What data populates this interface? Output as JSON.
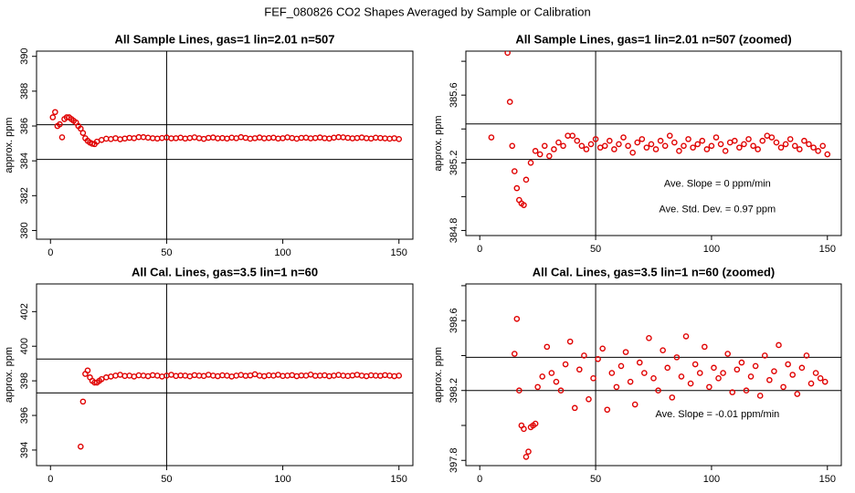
{
  "title": "FEF_080826  CO2 Shapes Averaged by Sample or Calibration",
  "chart_data": [
    {
      "type": "scatter",
      "title": "All Sample Lines, gas=1 lin=2.01 n=507",
      "ylabel": "approx. ppm",
      "color": "#e00000",
      "xlim": [
        -6,
        156
      ],
      "xticks": [
        0,
        50,
        100,
        150
      ],
      "ylim": [
        379.5,
        390.3
      ],
      "yticks": [
        380,
        382,
        384,
        386,
        388,
        390
      ],
      "hlines": [
        386.07,
        384.08
      ],
      "vline": 50,
      "x": [
        1,
        2,
        3,
        4,
        5,
        6,
        7,
        8,
        9,
        10,
        11,
        12,
        13,
        14,
        15,
        16,
        17,
        18,
        19,
        20,
        22,
        24,
        26,
        28,
        30,
        32,
        34,
        36,
        38,
        40,
        42,
        44,
        46,
        48,
        50,
        52,
        54,
        56,
        58,
        60,
        62,
        64,
        66,
        68,
        70,
        72,
        74,
        76,
        78,
        80,
        82,
        84,
        86,
        88,
        90,
        92,
        94,
        96,
        98,
        100,
        102,
        104,
        106,
        108,
        110,
        112,
        114,
        116,
        118,
        120,
        122,
        124,
        126,
        128,
        130,
        132,
        134,
        136,
        138,
        140,
        142,
        144,
        146,
        148,
        150
      ],
      "values": [
        386.5,
        386.8,
        386.0,
        386.1,
        385.35,
        386.4,
        386.5,
        386.5,
        386.4,
        386.3,
        386.2,
        386.0,
        385.85,
        385.6,
        385.3,
        385.15,
        385.05,
        384.98,
        384.96,
        385.1,
        385.2,
        385.27,
        385.25,
        385.3,
        385.24,
        385.28,
        385.32,
        385.3,
        385.36,
        385.36,
        385.33,
        385.3,
        385.28,
        385.31,
        385.34,
        385.29,
        385.3,
        385.33,
        385.28,
        385.31,
        385.35,
        385.3,
        385.26,
        385.32,
        385.34,
        385.29,
        385.31,
        385.28,
        385.33,
        385.3,
        385.36,
        385.32,
        385.27,
        385.3,
        385.34,
        385.29,
        385.31,
        385.33,
        385.28,
        385.3,
        385.35,
        385.31,
        385.27,
        385.32,
        385.33,
        385.29,
        385.31,
        385.34,
        385.3,
        385.28,
        385.33,
        385.36,
        385.35,
        385.32,
        385.29,
        385.31,
        385.34,
        385.3,
        385.28,
        385.33,
        385.31,
        385.29,
        385.27,
        385.3,
        385.25
      ]
    },
    {
      "type": "scatter",
      "title": "All Sample Lines, gas=1 lin=2.01 n=507 (zoomed)",
      "ylabel": "approx. ppm",
      "color": "#e00000",
      "xlim": [
        -6,
        156
      ],
      "xticks": [
        0,
        50,
        100,
        150
      ],
      "ylim": [
        384.77,
        385.86
      ],
      "yticks": [
        384.8,
        385.2,
        385.6
      ],
      "minor_yticks": [
        385.0,
        385.4,
        385.8
      ],
      "hlines": [
        385.43,
        385.22
      ],
      "vline": 50,
      "annotations": [
        "Ave. Slope =  0  ppm/min",
        "Ave. Std. Dev. =  0.97  ppm"
      ],
      "x": [
        5,
        12,
        13,
        14,
        15,
        16,
        17,
        18,
        19,
        20,
        22,
        24,
        26,
        28,
        30,
        32,
        34,
        36,
        38,
        40,
        42,
        44,
        46,
        48,
        50,
        52,
        54,
        56,
        58,
        60,
        62,
        64,
        66,
        68,
        70,
        72,
        74,
        76,
        78,
        80,
        82,
        84,
        86,
        88,
        90,
        92,
        94,
        96,
        98,
        100,
        102,
        104,
        106,
        108,
        110,
        112,
        114,
        116,
        118,
        120,
        122,
        124,
        126,
        128,
        130,
        132,
        134,
        136,
        138,
        140,
        142,
        144,
        146,
        148,
        150
      ],
      "values": [
        385.35,
        385.85,
        385.56,
        385.3,
        385.15,
        385.05,
        384.98,
        384.96,
        384.95,
        385.1,
        385.2,
        385.27,
        385.25,
        385.3,
        385.24,
        385.28,
        385.32,
        385.3,
        385.36,
        385.36,
        385.33,
        385.3,
        385.28,
        385.31,
        385.34,
        385.29,
        385.3,
        385.33,
        385.28,
        385.31,
        385.35,
        385.3,
        385.26,
        385.32,
        385.34,
        385.29,
        385.31,
        385.28,
        385.33,
        385.3,
        385.36,
        385.32,
        385.27,
        385.3,
        385.34,
        385.29,
        385.31,
        385.33,
        385.28,
        385.3,
        385.35,
        385.31,
        385.27,
        385.32,
        385.33,
        385.29,
        385.31,
        385.34,
        385.3,
        385.28,
        385.33,
        385.36,
        385.35,
        385.32,
        385.29,
        385.31,
        385.34,
        385.3,
        385.28,
        385.33,
        385.31,
        385.29,
        385.27,
        385.3,
        385.25
      ]
    },
    {
      "type": "scatter",
      "title": "All Cal. Lines, gas=3.5 lin=1 n=60",
      "ylabel": "approx. ppm",
      "color": "#e00000",
      "xlim": [
        -6,
        156
      ],
      "xticks": [
        0,
        50,
        100,
        150
      ],
      "ylim": [
        393.1,
        403.6
      ],
      "yticks": [
        394,
        396,
        398,
        400,
        402
      ],
      "hlines": [
        399.26,
        397.3
      ],
      "vline": 50,
      "x": [
        13,
        14,
        15,
        16,
        17,
        18,
        19,
        20,
        21,
        22,
        24,
        26,
        28,
        30,
        32,
        34,
        36,
        38,
        40,
        42,
        44,
        46,
        48,
        50,
        52,
        54,
        56,
        58,
        60,
        62,
        64,
        66,
        68,
        70,
        72,
        74,
        76,
        78,
        80,
        82,
        84,
        86,
        88,
        90,
        92,
        94,
        96,
        98,
        100,
        102,
        104,
        106,
        108,
        110,
        112,
        114,
        116,
        118,
        120,
        122,
        124,
        126,
        128,
        130,
        132,
        134,
        136,
        138,
        140,
        142,
        144,
        146,
        148,
        150
      ],
      "values": [
        394.2,
        396.8,
        398.4,
        398.6,
        398.2,
        398.0,
        397.9,
        397.9,
        398.0,
        398.1,
        398.2,
        398.25,
        398.3,
        398.35,
        398.28,
        398.3,
        398.25,
        398.32,
        398.3,
        398.27,
        398.33,
        398.3,
        398.25,
        398.3,
        398.35,
        398.28,
        398.31,
        398.3,
        398.26,
        398.33,
        398.3,
        398.28,
        398.35,
        398.3,
        398.27,
        398.32,
        398.3,
        398.25,
        398.3,
        398.34,
        398.29,
        398.31,
        398.38,
        398.3,
        398.27,
        398.32,
        398.3,
        398.35,
        398.28,
        398.3,
        398.33,
        398.27,
        398.31,
        398.3,
        398.36,
        398.29,
        398.3,
        398.32,
        398.27,
        398.3,
        398.34,
        398.3,
        398.28,
        398.31,
        398.35,
        398.3,
        398.27,
        398.32,
        398.3,
        398.29,
        398.33,
        398.3,
        398.27,
        398.3
      ]
    },
    {
      "type": "scatter",
      "title": "All Cal. Lines, gas=3.5 lin=1 n=60 (zoomed)",
      "ylabel": "approx. ppm",
      "color": "#e00000",
      "xlim": [
        -6,
        156
      ],
      "xticks": [
        0,
        50,
        100,
        150
      ],
      "ylim": [
        397.77,
        398.81
      ],
      "yticks": [
        397.8,
        398.2,
        398.6
      ],
      "minor_yticks": [
        398.0,
        398.4,
        398.8
      ],
      "hlines": [
        398.39,
        398.2
      ],
      "vline": 50,
      "annotations": [
        "Ave. Slope =  -0.01  ppm/min"
      ],
      "x": [
        15,
        16,
        17,
        18,
        19,
        20,
        21,
        22,
        23,
        24,
        25,
        27,
        29,
        31,
        33,
        35,
        37,
        39,
        41,
        43,
        45,
        47,
        49,
        51,
        53,
        55,
        57,
        59,
        61,
        63,
        65,
        67,
        69,
        71,
        73,
        75,
        77,
        79,
        81,
        83,
        85,
        87,
        89,
        91,
        93,
        95,
        97,
        99,
        101,
        103,
        105,
        107,
        109,
        111,
        113,
        115,
        117,
        119,
        121,
        123,
        125,
        127,
        129,
        131,
        133,
        135,
        137,
        139,
        141,
        143,
        145,
        147,
        149
      ],
      "values": [
        398.41,
        398.61,
        398.2,
        398.0,
        397.98,
        397.82,
        397.85,
        397.99,
        398.0,
        398.01,
        398.22,
        398.28,
        398.45,
        398.3,
        398.25,
        398.2,
        398.35,
        398.48,
        398.1,
        398.32,
        398.4,
        398.15,
        398.27,
        398.38,
        398.44,
        398.09,
        398.3,
        398.22,
        398.34,
        398.42,
        398.25,
        398.12,
        398.36,
        398.3,
        398.5,
        398.27,
        398.2,
        398.43,
        398.33,
        398.16,
        398.39,
        398.28,
        398.51,
        398.24,
        398.35,
        398.3,
        398.45,
        398.22,
        398.33,
        398.27,
        398.3,
        398.41,
        398.19,
        398.32,
        398.36,
        398.2,
        398.28,
        398.34,
        398.17,
        398.4,
        398.26,
        398.31,
        398.46,
        398.22,
        398.35,
        398.29,
        398.18,
        398.33,
        398.4,
        398.24,
        398.3,
        398.27,
        398.25
      ]
    }
  ]
}
